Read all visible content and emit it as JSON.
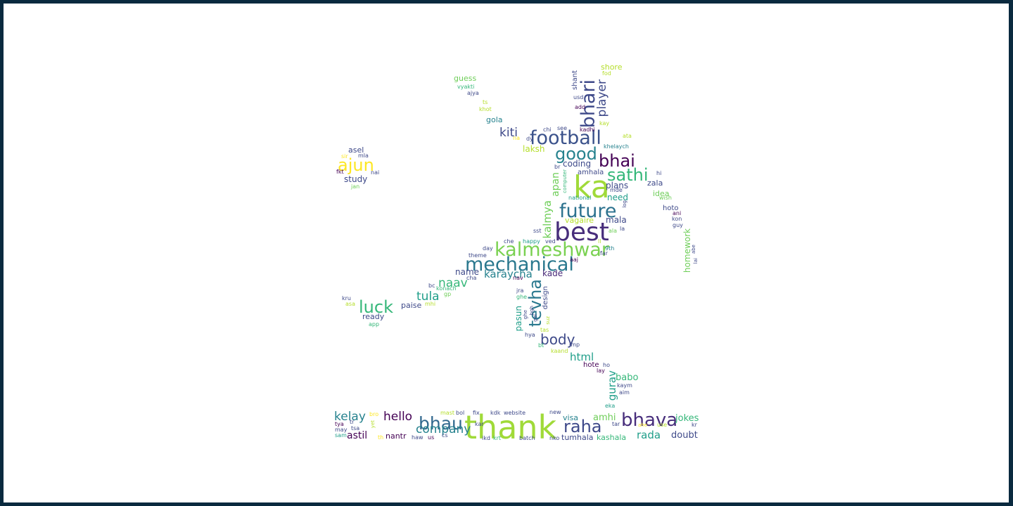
{
  "palette": {
    "frame": "#0a2a3f",
    "background": "#ffffff",
    "viridis": [
      "#440154",
      "#482878",
      "#3e4989",
      "#31688e",
      "#26828e",
      "#1f9e89",
      "#35b779",
      "#6ece58",
      "#b5de2b",
      "#fde725"
    ]
  },
  "words": [
    {
      "text": "thank"
    },
    {
      "text": "ka"
    },
    {
      "text": "best"
    },
    {
      "text": "mechanical"
    },
    {
      "text": "kalmeshwar"
    },
    {
      "text": "football"
    },
    {
      "text": "future"
    },
    {
      "text": "bhari"
    },
    {
      "text": "good"
    },
    {
      "text": "bhai"
    },
    {
      "text": "sathi"
    },
    {
      "text": "tevha"
    },
    {
      "text": "bhau"
    },
    {
      "text": "bhava"
    },
    {
      "text": "raha"
    },
    {
      "text": "ajun"
    },
    {
      "text": "luck"
    },
    {
      "text": "body"
    },
    {
      "text": "company"
    },
    {
      "text": "player"
    },
    {
      "text": "kiti"
    },
    {
      "text": "hello"
    },
    {
      "text": "kelay"
    },
    {
      "text": "naav"
    },
    {
      "text": "tula"
    },
    {
      "text": "karaycha"
    },
    {
      "text": "html"
    },
    {
      "text": "gurav"
    },
    {
      "text": "rada"
    },
    {
      "text": "jokes"
    },
    {
      "text": "doubt"
    },
    {
      "text": "astil"
    },
    {
      "text": "amhi"
    },
    {
      "text": "babo"
    },
    {
      "text": "kalmya"
    },
    {
      "text": "apan"
    },
    {
      "text": "coding"
    },
    {
      "text": "laksh"
    },
    {
      "text": "plans"
    },
    {
      "text": "need"
    },
    {
      "text": "mala"
    },
    {
      "text": "name"
    },
    {
      "text": "kade"
    },
    {
      "text": "pasun"
    },
    {
      "text": "homework"
    },
    {
      "text": "study"
    },
    {
      "text": "asel"
    },
    {
      "text": "ready"
    },
    {
      "text": "paise"
    },
    {
      "text": "visa"
    },
    {
      "text": "nantr"
    },
    {
      "text": "tumhala"
    },
    {
      "text": "kashala"
    },
    {
      "text": "zala"
    },
    {
      "text": "idea"
    },
    {
      "text": "hoto"
    },
    {
      "text": "guess"
    },
    {
      "text": "gola"
    },
    {
      "text": "shore"
    },
    {
      "text": "amhala"
    },
    {
      "text": "vagaire"
    },
    {
      "text": "design"
    },
    {
      "text": "hote"
    },
    {
      "text": "shant"
    },
    {
      "text": "fkt"
    },
    {
      "text": "nai"
    },
    {
      "text": "jan"
    },
    {
      "text": "sir"
    },
    {
      "text": "mla"
    },
    {
      "text": "vyakti"
    },
    {
      "text": "ajya"
    },
    {
      "text": "ts"
    },
    {
      "text": "khot"
    },
    {
      "text": "fod"
    },
    {
      "text": "usd"
    },
    {
      "text": "add"
    },
    {
      "text": "kay"
    },
    {
      "text": "kadhi"
    },
    {
      "text": "chi"
    },
    {
      "text": "see"
    },
    {
      "text": "dy"
    },
    {
      "text": "na"
    },
    {
      "text": "ata"
    },
    {
      "text": "khelaych"
    },
    {
      "text": "br"
    },
    {
      "text": "hi"
    },
    {
      "text": "computer"
    },
    {
      "text": "mde"
    },
    {
      "text": "national"
    },
    {
      "text": "wish"
    },
    {
      "text": "log"
    },
    {
      "text": "ani"
    },
    {
      "text": "kon"
    },
    {
      "text": "guy"
    },
    {
      "text": "sst"
    },
    {
      "text": "ala"
    },
    {
      "text": "la"
    },
    {
      "text": "che"
    },
    {
      "text": "happy"
    },
    {
      "text": "ved"
    },
    {
      "text": "ll"
    },
    {
      "text": "day"
    },
    {
      "text": "9th"
    },
    {
      "text": "far"
    },
    {
      "text": "theme"
    },
    {
      "text": "aaj"
    },
    {
      "text": "lai"
    },
    {
      "text": "abe"
    },
    {
      "text": "cha"
    },
    {
      "text": "nav"
    },
    {
      "text": "bc"
    },
    {
      "text": "konach"
    },
    {
      "text": "gp"
    },
    {
      "text": "jra"
    },
    {
      "text": "ghe"
    },
    {
      "text": "kru"
    },
    {
      "text": "asa"
    },
    {
      "text": "mhi"
    },
    {
      "text": "app"
    },
    {
      "text": "ghe"
    },
    {
      "text": "bgh"
    },
    {
      "text": "suz"
    },
    {
      "text": "tas"
    },
    {
      "text": "hya"
    },
    {
      "text": "bt"
    },
    {
      "text": "imp"
    },
    {
      "text": "kaand"
    },
    {
      "text": "ho"
    },
    {
      "text": "lay"
    },
    {
      "text": "kaym"
    },
    {
      "text": "aim"
    },
    {
      "text": "eka"
    },
    {
      "text": "mast"
    },
    {
      "text": "bol"
    },
    {
      "text": "fix"
    },
    {
      "text": "kdk"
    },
    {
      "text": "website"
    },
    {
      "text": "new"
    },
    {
      "text": "bro"
    },
    {
      "text": "tya"
    },
    {
      "text": "tr"
    },
    {
      "text": "may"
    },
    {
      "text": "tsa"
    },
    {
      "text": "yet"
    },
    {
      "text": "sam"
    },
    {
      "text": "th"
    },
    {
      "text": "haw"
    },
    {
      "text": "us"
    },
    {
      "text": "cs"
    },
    {
      "text": "kar"
    },
    {
      "text": "ikd"
    },
    {
      "text": "krt"
    },
    {
      "text": "batch"
    },
    {
      "text": "nko"
    },
    {
      "text": "tar"
    },
    {
      "text": "use"
    },
    {
      "text": "kr"
    },
    {
      "text": "ahe"
    },
    {
      "text": "gel"
    }
  ]
}
